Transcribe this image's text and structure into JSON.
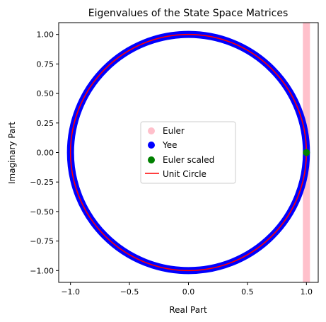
{
  "chart_data": {
    "type": "scatter",
    "title": "Eigenvalues of the State Space Matrices",
    "xlabel": "Real Part",
    "ylabel": "Imaginary Part",
    "xlim": [
      -1.1,
      1.1
    ],
    "ylim": [
      -1.1,
      1.1
    ],
    "aspect": "equal",
    "grid": false,
    "legend_position": "center",
    "x_ticks": [
      -1.0,
      -0.5,
      0.0,
      0.5,
      1.0
    ],
    "x_tick_labels": [
      "−1.0",
      "−0.5",
      "0.0",
      "0.5",
      "1.0"
    ],
    "y_ticks": [
      -1.0,
      -0.75,
      -0.5,
      -0.25,
      0.0,
      0.25,
      0.5,
      0.75,
      1.0
    ],
    "y_tick_labels": [
      "−1.00",
      "−0.75",
      "−0.50",
      "−0.25",
      "0.00",
      "0.25",
      "0.50",
      "0.75",
      "1.00"
    ],
    "series": [
      {
        "name": "Euler",
        "kind": "scatter",
        "color": "#ffc0cb",
        "description_x_values": 1.0,
        "y_range": [
          -1.1,
          1.1
        ]
      },
      {
        "name": "Yee",
        "kind": "scatter",
        "color": "#0000ff",
        "radius": 1.0
      },
      {
        "name": "Euler scaled",
        "kind": "scatter",
        "color": "#008000",
        "points": [
          [
            1.0,
            0.0
          ]
        ]
      },
      {
        "name": "Unit Circle",
        "kind": "line",
        "color": "#ff0000",
        "radius": 1.0
      }
    ]
  }
}
